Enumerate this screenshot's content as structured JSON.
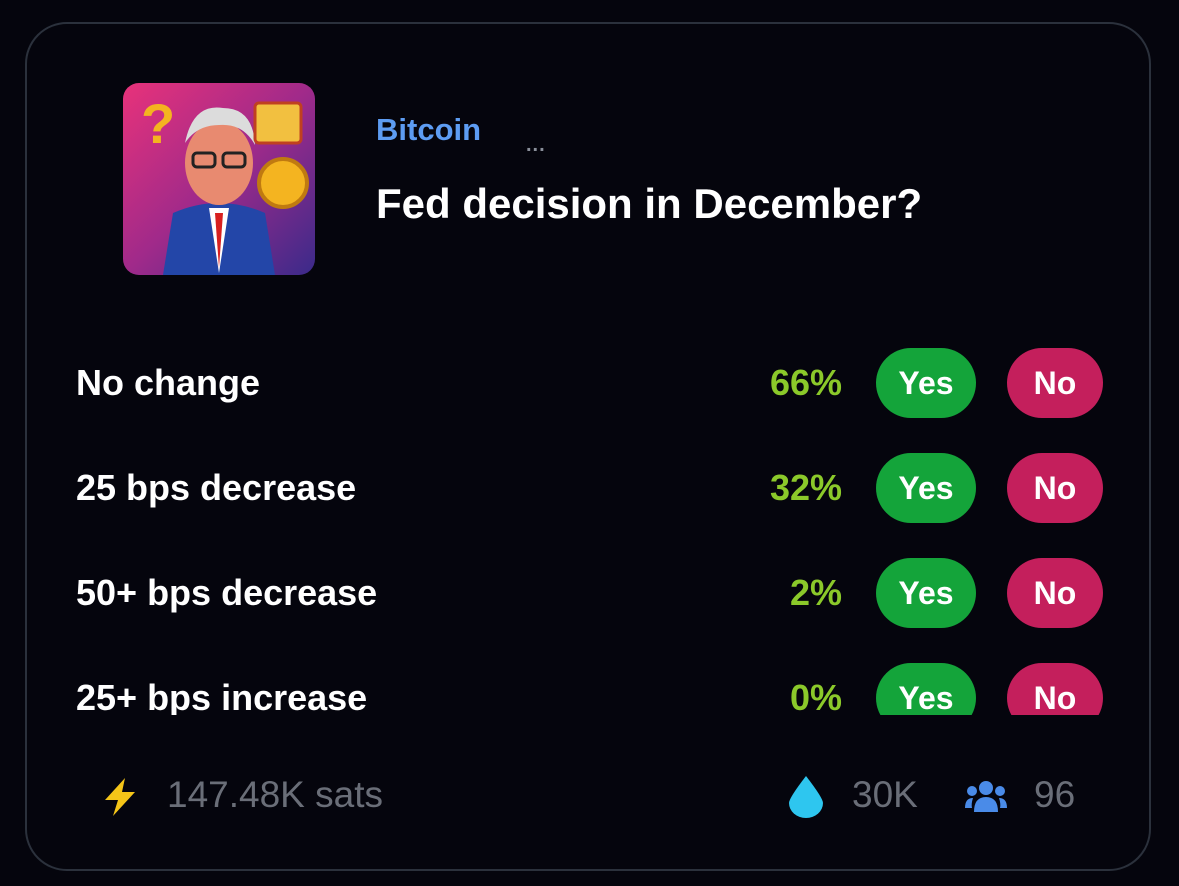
{
  "market": {
    "category": "Bitcoin",
    "more": "...",
    "title": "Fed decision in December?",
    "outcomes": [
      {
        "label": "No change",
        "chance": "66%",
        "yes": "Yes",
        "no": "No"
      },
      {
        "label": "25 bps decrease",
        "chance": "32%",
        "yes": "Yes",
        "no": "No"
      },
      {
        "label": "50+ bps decrease",
        "chance": "2%",
        "yes": "Yes",
        "no": "No"
      },
      {
        "label": "25+ bps increase",
        "chance": "0%",
        "yes": "Yes",
        "no": "No"
      }
    ]
  },
  "footer": {
    "volume": "147.48K sats",
    "liquidity": "30K",
    "traders": "96"
  }
}
